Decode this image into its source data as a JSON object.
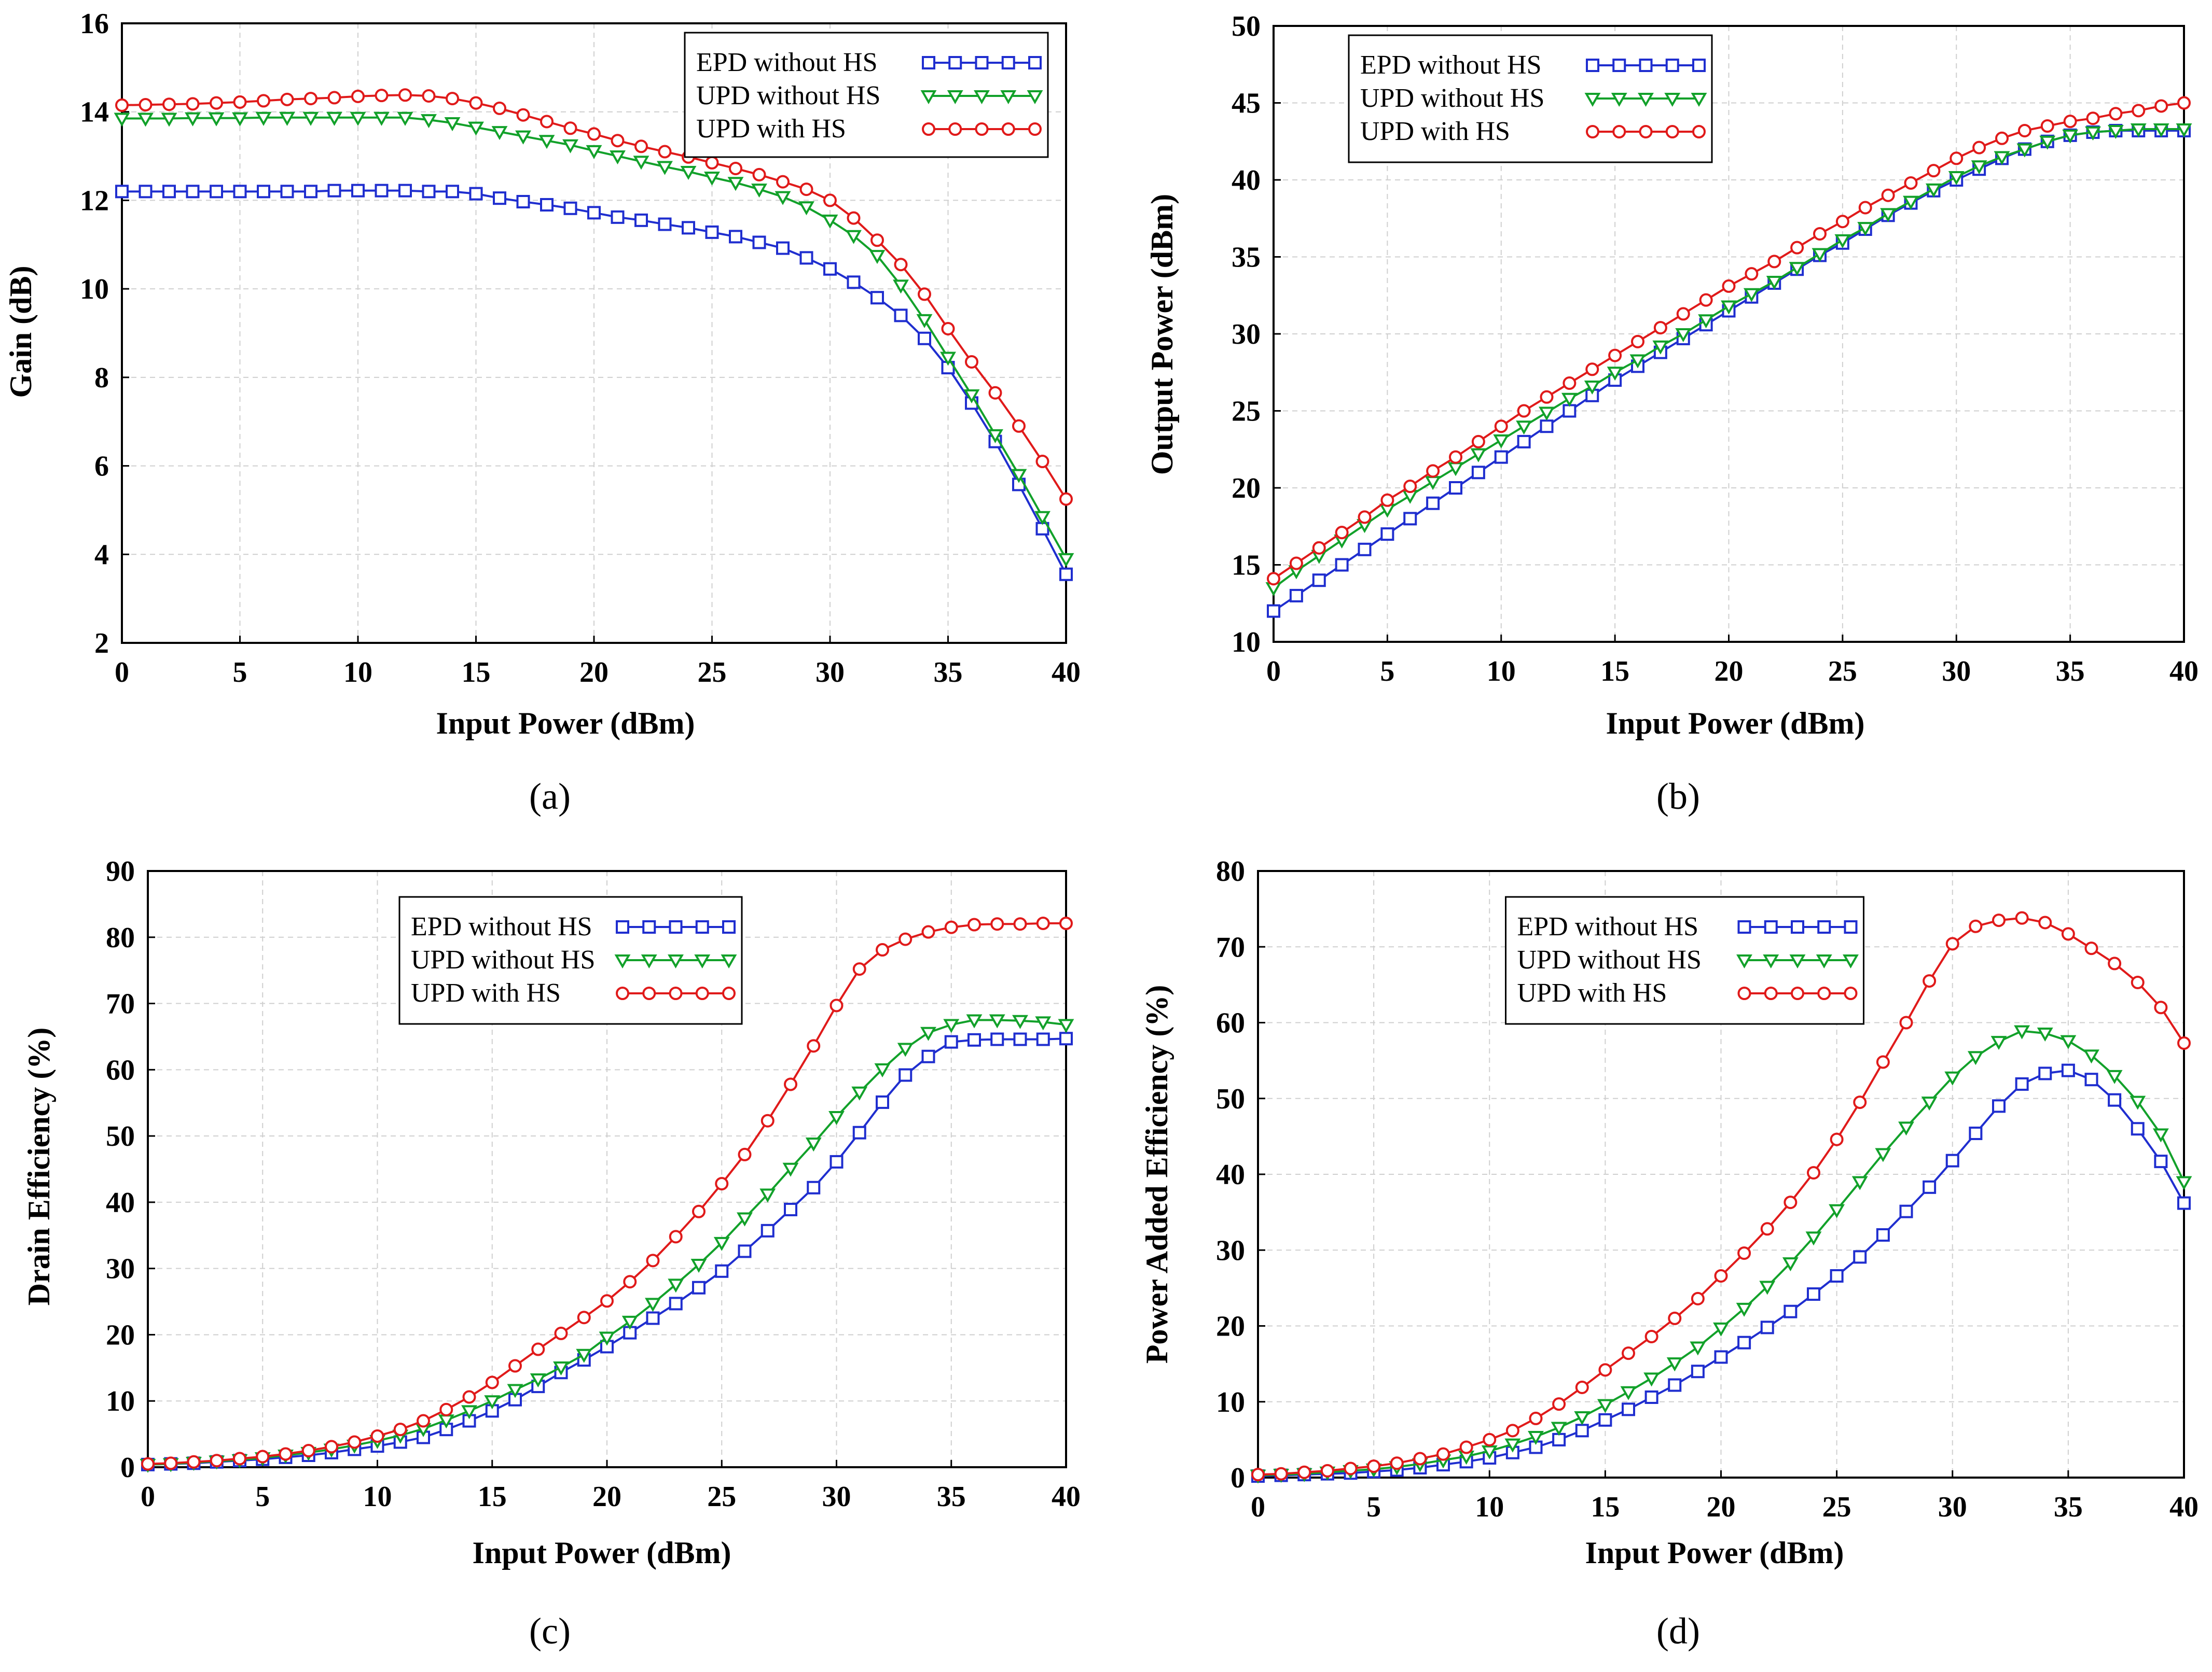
{
  "figure": {
    "series_colors": {
      "EPD without HS": "#1f2ecf",
      "UPD without HS": "#12a12a",
      "UPD with HS": "#e01a1a"
    },
    "series_markers": {
      "EPD without HS": "square",
      "UPD without HS": "triangle-down",
      "UPD with HS": "circle"
    }
  },
  "chart_data": [
    {
      "type": "line",
      "caption": "(a)",
      "title": "",
      "xlabel": "Input Power (dBm)",
      "ylabel": "Gain (dB)",
      "xlim": [
        0,
        40
      ],
      "ylim": [
        2,
        16
      ],
      "xticks": [
        "0",
        "5",
        "10",
        "15",
        "20",
        "25",
        "30",
        "35",
        "40"
      ],
      "yticks": [
        "2",
        "4",
        "6",
        "8",
        "10",
        "12",
        "14",
        "16"
      ],
      "grid": true,
      "legend_position": "top-right",
      "x": [
        0,
        1,
        2,
        3,
        4,
        5,
        6,
        7,
        8,
        9,
        10,
        11,
        12,
        13,
        14,
        15,
        16,
        17,
        18,
        19,
        20,
        21,
        22,
        23,
        24,
        25,
        26,
        27,
        28,
        29,
        30,
        31,
        32,
        33,
        34,
        35,
        36,
        37,
        38,
        39,
        40
      ],
      "series": [
        {
          "name": "EPD without HS",
          "values": [
            12.2,
            12.2,
            12.2,
            12.2,
            12.2,
            12.2,
            12.2,
            12.2,
            12.2,
            12.22,
            12.22,
            12.22,
            12.22,
            12.2,
            12.2,
            12.15,
            12.05,
            11.97,
            11.9,
            11.82,
            11.72,
            11.62,
            11.55,
            11.46,
            11.38,
            11.28,
            11.18,
            11.05,
            10.92,
            10.7,
            10.45,
            10.15,
            9.8,
            9.4,
            8.88,
            8.22,
            7.42,
            6.55,
            5.58,
            4.58,
            3.55
          ]
        },
        {
          "name": "UPD without HS",
          "values": [
            13.85,
            13.85,
            13.85,
            13.86,
            13.86,
            13.86,
            13.87,
            13.87,
            13.87,
            13.87,
            13.87,
            13.87,
            13.87,
            13.82,
            13.75,
            13.65,
            13.55,
            13.45,
            13.35,
            13.25,
            13.12,
            13.0,
            12.88,
            12.76,
            12.65,
            12.52,
            12.4,
            12.25,
            12.08,
            11.85,
            11.55,
            11.2,
            10.75,
            10.08,
            9.3,
            8.45,
            7.6,
            6.7,
            5.8,
            4.85,
            3.9
          ]
        },
        {
          "name": "UPD with HS",
          "values": [
            14.15,
            14.16,
            14.17,
            14.18,
            14.2,
            14.22,
            14.25,
            14.28,
            14.3,
            14.32,
            14.35,
            14.37,
            14.38,
            14.36,
            14.3,
            14.2,
            14.08,
            13.93,
            13.78,
            13.63,
            13.5,
            13.35,
            13.22,
            13.1,
            12.98,
            12.85,
            12.72,
            12.58,
            12.42,
            12.25,
            12.0,
            11.6,
            11.1,
            10.55,
            9.88,
            9.1,
            8.35,
            7.65,
            6.9,
            6.1,
            5.25
          ]
        }
      ]
    },
    {
      "type": "line",
      "caption": "(b)",
      "title": "",
      "xlabel": "Input Power (dBm)",
      "ylabel": "Output Power (dBm)",
      "xlim": [
        0,
        40
      ],
      "ylim": [
        10,
        50
      ],
      "xticks": [
        "0",
        "5",
        "10",
        "15",
        "20",
        "25",
        "30",
        "35",
        "40"
      ],
      "yticks": [
        "10",
        "15",
        "20",
        "25",
        "30",
        "35",
        "40",
        "45",
        "50"
      ],
      "grid": true,
      "legend_position": "top-left",
      "x": [
        0,
        1,
        2,
        3,
        4,
        5,
        6,
        7,
        8,
        9,
        10,
        11,
        12,
        13,
        14,
        15,
        16,
        17,
        18,
        19,
        20,
        21,
        22,
        23,
        24,
        25,
        26,
        27,
        28,
        29,
        30,
        31,
        32,
        33,
        34,
        35,
        36,
        37,
        38,
        39,
        40
      ],
      "series": [
        {
          "name": "EPD without HS",
          "values": [
            12.0,
            13.0,
            14.0,
            15.0,
            16.0,
            17.0,
            18.0,
            19.0,
            20.0,
            21.0,
            22.0,
            23.0,
            24.0,
            25.0,
            26.0,
            27.0,
            27.9,
            28.8,
            29.7,
            30.6,
            31.5,
            32.4,
            33.3,
            34.2,
            35.1,
            35.9,
            36.8,
            37.7,
            38.5,
            39.3,
            40.0,
            40.7,
            41.4,
            42.0,
            42.5,
            42.9,
            43.1,
            43.2,
            43.2,
            43.2,
            43.2
          ]
        },
        {
          "name": "UPD without HS",
          "values": [
            13.5,
            14.6,
            15.6,
            16.6,
            17.6,
            18.6,
            19.5,
            20.4,
            21.3,
            22.2,
            23.1,
            24.0,
            24.9,
            25.8,
            26.6,
            27.5,
            28.3,
            29.2,
            30.0,
            30.9,
            31.8,
            32.6,
            33.4,
            34.3,
            35.2,
            36.1,
            36.9,
            37.8,
            38.6,
            39.4,
            40.2,
            40.9,
            41.5,
            42.0,
            42.5,
            42.9,
            43.1,
            43.2,
            43.3,
            43.3,
            43.3
          ]
        },
        {
          "name": "UPD with HS",
          "values": [
            14.1,
            15.1,
            16.1,
            17.1,
            18.1,
            19.2,
            20.1,
            21.1,
            22.0,
            23.0,
            24.0,
            25.0,
            25.9,
            26.8,
            27.7,
            28.6,
            29.5,
            30.4,
            31.3,
            32.2,
            33.1,
            33.9,
            34.7,
            35.6,
            36.5,
            37.3,
            38.2,
            39.0,
            39.8,
            40.6,
            41.4,
            42.1,
            42.7,
            43.2,
            43.5,
            43.8,
            44.0,
            44.3,
            44.5,
            44.8,
            45.0
          ]
        }
      ]
    },
    {
      "type": "line",
      "caption": "(c)",
      "title": "",
      "xlabel": "Input Power (dBm)",
      "ylabel": "Drain Efficiency (%)",
      "xlim": [
        0,
        40
      ],
      "ylim": [
        0,
        90
      ],
      "xticks": [
        "0",
        "5",
        "10",
        "15",
        "20",
        "25",
        "30",
        "35",
        "40"
      ],
      "yticks": [
        "0",
        "10",
        "20",
        "30",
        "40",
        "50",
        "60",
        "70",
        "80",
        "90"
      ],
      "grid": true,
      "legend_position": "top-center",
      "x": [
        0,
        1,
        2,
        3,
        4,
        5,
        6,
        7,
        8,
        9,
        10,
        11,
        12,
        13,
        14,
        15,
        16,
        17,
        18,
        19,
        20,
        21,
        22,
        23,
        24,
        25,
        26,
        27,
        28,
        29,
        30,
        31,
        32,
        33,
        34,
        35,
        36,
        37,
        38,
        39,
        40
      ],
      "series": [
        {
          "name": "EPD without HS",
          "values": [
            0.4,
            0.5,
            0.6,
            0.8,
            1.0,
            1.2,
            1.5,
            1.8,
            2.2,
            2.7,
            3.2,
            3.8,
            4.5,
            5.7,
            7.0,
            8.5,
            10.2,
            12.2,
            14.3,
            16.2,
            18.2,
            20.3,
            22.5,
            24.7,
            27.1,
            29.6,
            32.6,
            35.7,
            38.9,
            42.2,
            46.1,
            50.5,
            55.1,
            59.2,
            62.0,
            64.2,
            64.5,
            64.6,
            64.6,
            64.6,
            64.7
          ]
        },
        {
          "name": "UPD without HS",
          "values": [
            0.4,
            0.5,
            0.7,
            0.9,
            1.1,
            1.4,
            1.8,
            2.2,
            2.7,
            3.3,
            4.0,
            4.8,
            5.8,
            7.1,
            8.5,
            10.0,
            11.7,
            13.3,
            15.1,
            17.0,
            19.6,
            22.0,
            24.7,
            27.6,
            30.6,
            33.9,
            37.6,
            41.2,
            45.1,
            48.9,
            52.9,
            56.6,
            60.1,
            63.2,
            65.6,
            66.8,
            67.5,
            67.5,
            67.4,
            67.2,
            66.8
          ]
        },
        {
          "name": "UPD with HS",
          "values": [
            0.5,
            0.6,
            0.8,
            1.0,
            1.3,
            1.6,
            2.0,
            2.5,
            3.1,
            3.8,
            4.7,
            5.7,
            7.0,
            8.7,
            10.6,
            12.8,
            15.3,
            17.8,
            20.2,
            22.6,
            25.1,
            28.0,
            31.2,
            34.8,
            38.6,
            42.8,
            47.2,
            52.3,
            57.8,
            63.6,
            69.7,
            75.2,
            78.1,
            79.7,
            80.8,
            81.5,
            81.9,
            82.0,
            82.0,
            82.1,
            82.1
          ]
        }
      ]
    },
    {
      "type": "line",
      "caption": "(d)",
      "title": "",
      "xlabel": "Input Power (dBm)",
      "ylabel": "Power Added Efficiency (%)",
      "xlim": [
        0,
        40
      ],
      "ylim": [
        0,
        80
      ],
      "xticks": [
        "0",
        "5",
        "10",
        "15",
        "20",
        "25",
        "30",
        "35",
        "40"
      ],
      "yticks": [
        "0",
        "10",
        "20",
        "30",
        "40",
        "50",
        "60",
        "70",
        "80"
      ],
      "grid": true,
      "legend_position": "top-center",
      "x": [
        0,
        1,
        2,
        3,
        4,
        5,
        6,
        7,
        8,
        9,
        10,
        11,
        12,
        13,
        14,
        15,
        16,
        17,
        18,
        19,
        20,
        21,
        22,
        23,
        24,
        25,
        26,
        27,
        28,
        29,
        30,
        31,
        32,
        33,
        34,
        35,
        36,
        37,
        38,
        39,
        40
      ],
      "series": [
        {
          "name": "EPD without HS",
          "values": [
            0.2,
            0.3,
            0.4,
            0.5,
            0.6,
            0.8,
            1.0,
            1.3,
            1.7,
            2.1,
            2.6,
            3.3,
            4.0,
            5.0,
            6.2,
            7.6,
            9.0,
            10.6,
            12.2,
            14.0,
            15.9,
            17.8,
            19.8,
            21.9,
            24.2,
            26.6,
            29.1,
            32.0,
            35.1,
            38.3,
            41.8,
            45.4,
            49.0,
            51.9,
            53.3,
            53.7,
            52.5,
            49.8,
            46.0,
            41.7,
            36.2
          ]
        },
        {
          "name": "UPD without HS",
          "values": [
            0.3,
            0.4,
            0.5,
            0.7,
            0.9,
            1.1,
            1.4,
            1.8,
            2.3,
            2.8,
            3.5,
            4.4,
            5.4,
            6.6,
            8.0,
            9.6,
            11.3,
            13.1,
            15.1,
            17.2,
            19.7,
            22.3,
            25.2,
            28.3,
            31.7,
            35.3,
            39.0,
            42.7,
            46.2,
            49.5,
            52.8,
            55.5,
            57.5,
            58.9,
            58.6,
            57.6,
            55.7,
            53.0,
            49.6,
            45.3,
            39.0
          ]
        },
        {
          "name": "UPD with HS",
          "values": [
            0.4,
            0.5,
            0.7,
            0.9,
            1.2,
            1.5,
            1.9,
            2.5,
            3.1,
            4.0,
            5.0,
            6.2,
            7.8,
            9.7,
            11.9,
            14.2,
            16.4,
            18.6,
            21.0,
            23.6,
            26.6,
            29.6,
            32.8,
            36.3,
            40.2,
            44.6,
            49.5,
            54.8,
            60.0,
            65.5,
            70.4,
            72.7,
            73.5,
            73.8,
            73.2,
            71.7,
            69.8,
            67.8,
            65.3,
            62.0,
            57.3
          ]
        }
      ]
    }
  ]
}
